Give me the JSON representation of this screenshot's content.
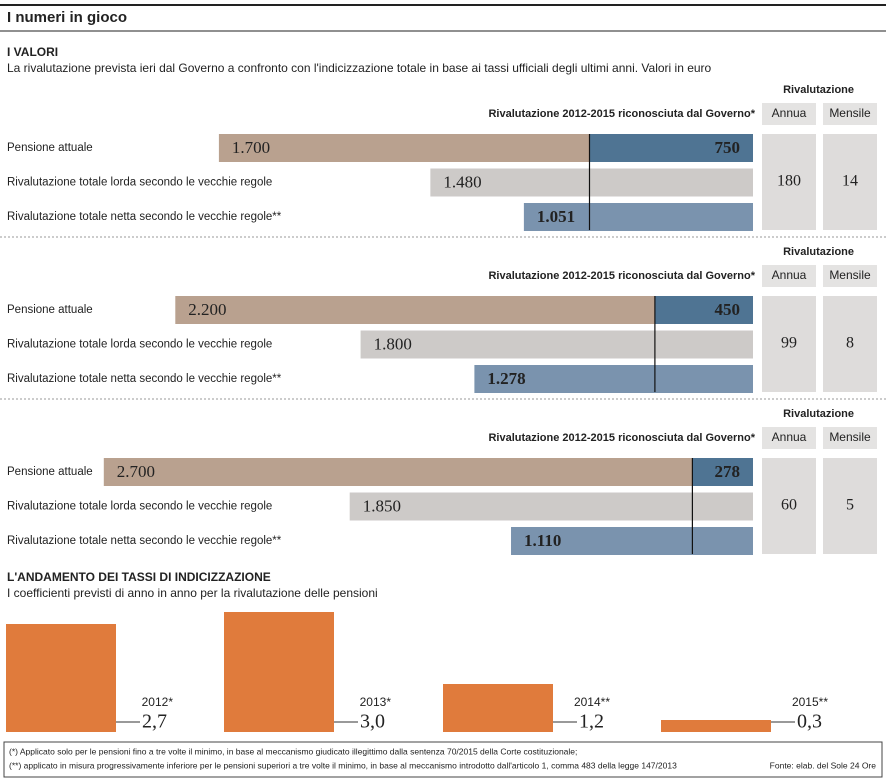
{
  "header": {
    "title": "I numeri in gioco"
  },
  "chart_data": [
    {
      "type": "hbar-stack",
      "title": "I VALORI",
      "subtitle": "La rivalutazione prevista ieri dal Governo a confronto con l'indicizzazione totale in base ai tassi ufficiali degli ultimi anni. Valori in euro",
      "rival_header": "Rivalutazione",
      "gov_label": "Rivalutazione 2012-2015 riconosciuta dal Governo*",
      "col_labels": [
        "Annua",
        "Mensile"
      ],
      "categories": [
        "Pensione attuale",
        "Rivalutazione totale lorda secondo le vecchie regole",
        "Rivalutazione totale netta secondo le vecchie regole**"
      ],
      "colors": [
        "#b9a18f",
        "#cdcac8",
        "#7a93ae"
      ],
      "gov_color": "#4f7493",
      "panels": [
        {
          "values": [
            1700,
            1480,
            1051
          ],
          "value_labels": [
            "1.700",
            "1.480",
            "1.051"
          ],
          "gov_value": 750,
          "annua": 180,
          "mensile": 14
        },
        {
          "values": [
            2200,
            1800,
            1278
          ],
          "value_labels": [
            "2.200",
            "1.800",
            "1.278"
          ],
          "gov_value": 450,
          "annua": 99,
          "mensile": 8
        },
        {
          "values": [
            2700,
            1850,
            1110
          ],
          "value_labels": [
            "2.700",
            "1.850",
            "1.110"
          ],
          "gov_value": 278,
          "annua": 60,
          "mensile": 5
        }
      ]
    },
    {
      "type": "bar",
      "title": "L'ANDAMENTO DEI TASSI DI INDICIZZAZIONE",
      "subtitle": "I coefficienti previsti di anno in anno per la rivalutazione delle pensioni",
      "categories": [
        "2012*",
        "2013*",
        "2014**",
        "2015**"
      ],
      "values": [
        2.7,
        3.0,
        1.2,
        0.3
      ],
      "value_labels": [
        "2,7",
        "3,0",
        "1,2",
        "0,3"
      ],
      "color": "#e07b3c"
    }
  ],
  "footnotes": [
    "(*) Applicato solo per le pensioni fino a tre volte il minimo, in base al meccanismo giudicato illegittimo dalla sentenza 70/2015 della Corte costituzionale;",
    "(**) applicato in misura progressivamente inferiore per le pensioni superiori a tre volte il minimo, in base al meccanismo introdotto dall'articolo 1, comma 483 della legge 147/2013"
  ],
  "source": "Fonte: elab. del Sole 24 Ore"
}
